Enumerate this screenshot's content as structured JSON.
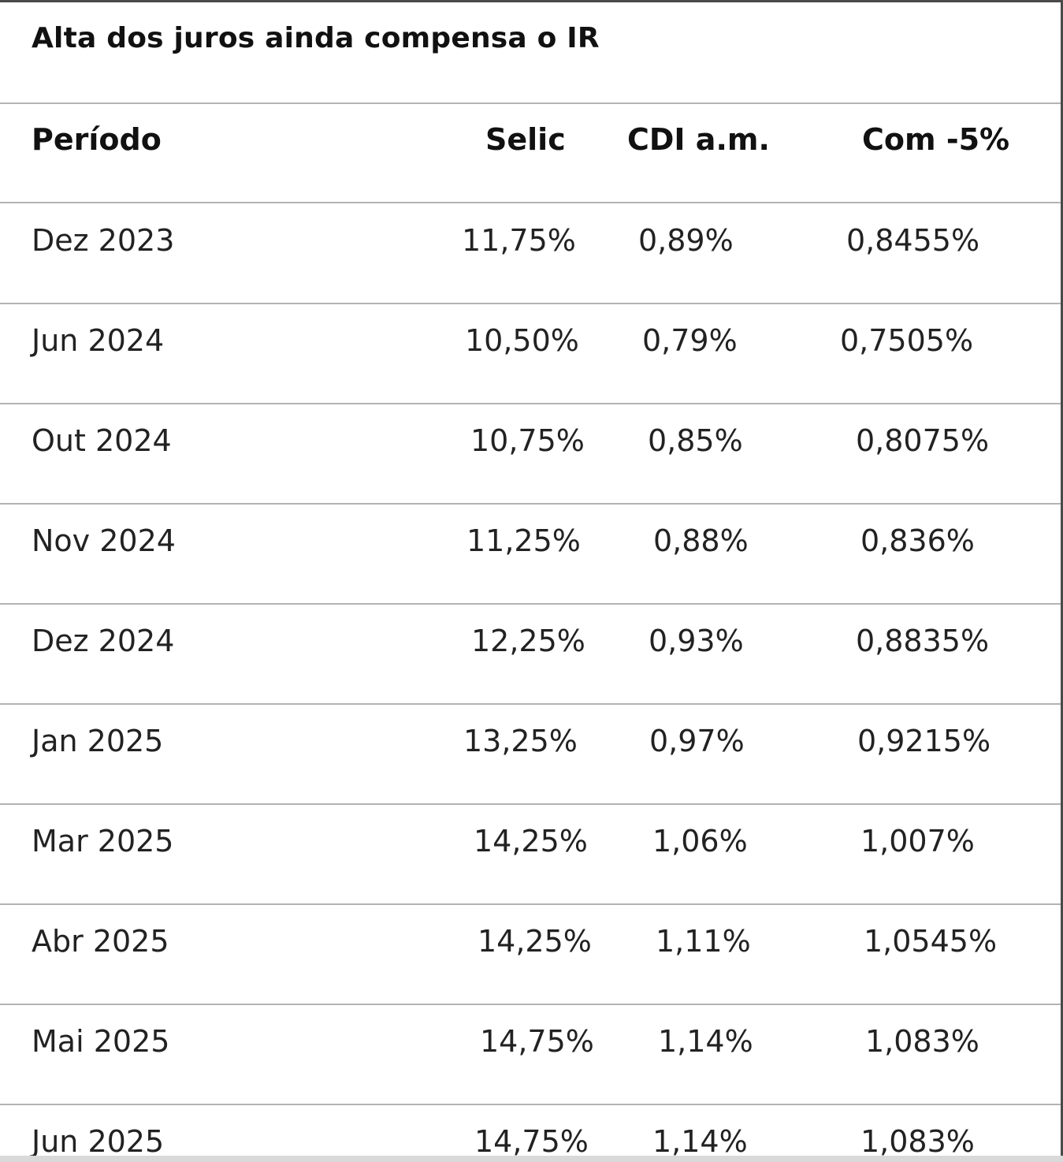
{
  "title": "Alta dos juros ainda compensa o IR",
  "headers": {
    "periodo": "Período",
    "selic": "Selic",
    "cdi": "CDI a.m.",
    "com": "Com -5%"
  },
  "rows": [
    {
      "periodo": "Dez 2023",
      "selic": "11,75%",
      "cdi": "0,89%",
      "com": "0,8455%"
    },
    {
      "periodo": "Jun 2024",
      "selic": "10,50%",
      "cdi": "0,79%",
      "com": "0,7505%"
    },
    {
      "periodo": "Out 2024",
      "selic": "10,75%",
      "cdi": "0,85%",
      "com": "0,8075%"
    },
    {
      "periodo": "Nov 2024",
      "selic": "11,25%",
      "cdi": "0,88%",
      "com": "0,836%"
    },
    {
      "periodo": "Dez 2024",
      "selic": "12,25%",
      "cdi": "0,93%",
      "com": "0,8835%"
    },
    {
      "periodo": "Jan 2025",
      "selic": "13,25%",
      "cdi": "0,97%",
      "com": "0,9215%"
    },
    {
      "periodo": "Mar 2025",
      "selic": "14,25%",
      "cdi": "1,06%",
      "com": "1,007%"
    },
    {
      "periodo": "Abr 2025",
      "selic": "14,25%",
      "cdi": "1,11%",
      "com": "1,0545%"
    },
    {
      "periodo": "Mai 2025",
      "selic": "14,75%",
      "cdi": "1,14%",
      "com": "1,083%"
    },
    {
      "periodo": "Jun 2025",
      "selic": "14,75%",
      "cdi": "1,14%",
      "com": "1,083%"
    }
  ]
}
